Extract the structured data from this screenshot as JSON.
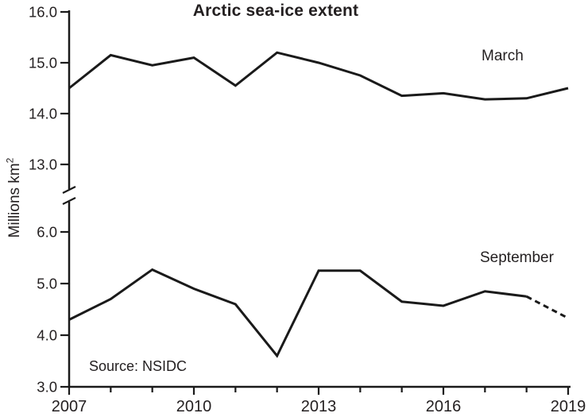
{
  "chart_data": {
    "type": "line",
    "title": "Arctic sea-ice extent",
    "ylabel": "Millions km",
    "ylabel_sup": "2",
    "source": "Source: NSIDC",
    "x": [
      2007,
      2008,
      2009,
      2010,
      2011,
      2012,
      2013,
      2014,
      2015,
      2016,
      2017,
      2018,
      2019
    ],
    "x_tick_labels": [
      2007,
      2010,
      2013,
      2016,
      2019
    ],
    "y_axis": {
      "top_section": {
        "ticks": [
          16.0,
          15.0,
          14.0,
          13.0
        ],
        "range": [
          13.0,
          16.0
        ]
      },
      "bottom_section": {
        "ticks": [
          6.0,
          5.0,
          4.0,
          3.0
        ],
        "range": [
          3.0,
          6.0
        ]
      },
      "break_between": [
        6.0,
        13.0
      ]
    },
    "series": [
      {
        "name": "March",
        "line_style": "solid",
        "values": [
          14.5,
          15.15,
          14.95,
          15.1,
          14.55,
          15.2,
          15.0,
          14.75,
          14.35,
          14.4,
          14.28,
          14.3,
          14.5
        ]
      },
      {
        "name": "September",
        "line_style": "solid-then-dashed",
        "dashed_from_x": 2018,
        "values": [
          4.3,
          4.7,
          5.27,
          4.9,
          4.6,
          3.6,
          5.25,
          5.25,
          4.65,
          4.57,
          4.85,
          4.75,
          4.33
        ]
      }
    ],
    "line_color": "#1a1a1a",
    "text_color": "#231f20",
    "legend_position": "inline-labels",
    "grid": "off"
  }
}
